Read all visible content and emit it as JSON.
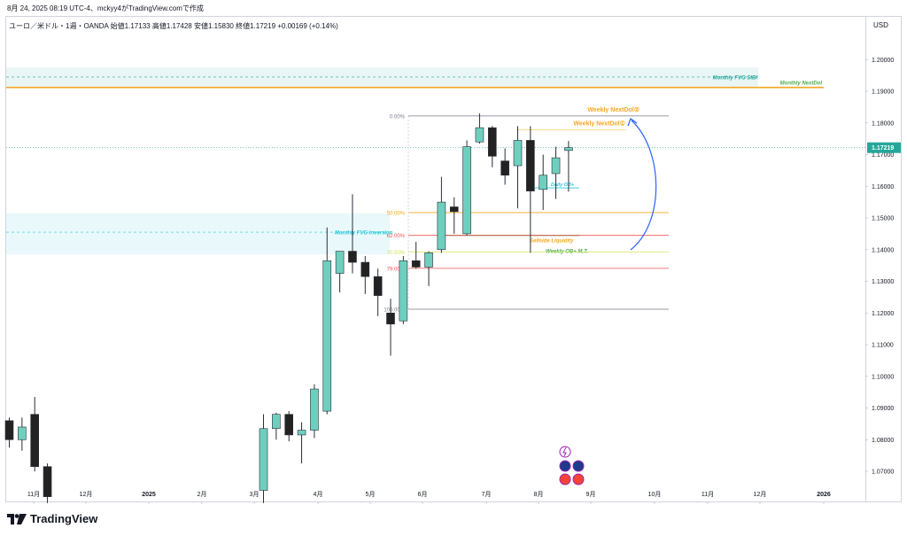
{
  "header": {
    "snapshot": "8月 24, 2025 08:19 UTC-4、mckyy4がTradingView.comで作成",
    "symbol_line": "ユーロ／米ドル・1週・OANDA  始値1.17133  高値1.17428  安値1.15830  終値1.17219  +0.00169 (+0.14%)"
  },
  "currency": "USD",
  "brand": {
    "name": "TradingView"
  },
  "chart_data": {
    "type": "candlestick",
    "y_ticks": [
      1.07,
      1.08,
      1.09,
      1.1,
      1.11,
      1.12,
      1.13,
      1.14,
      1.15,
      1.16,
      1.17,
      1.18,
      1.19,
      1.2
    ],
    "ylim": [
      1.0605,
      1.2135
    ],
    "x_labels": [
      "11月",
      "12月",
      "2025",
      "2月",
      "3月",
      "4月",
      "5月",
      "6月",
      "7月",
      "8月",
      "9月",
      "10月",
      "11月",
      "12月",
      "2026"
    ],
    "last_price": {
      "label": "1.17219",
      "value": 1.17219,
      "color": "#26a69a"
    },
    "colors": {
      "up": "#6fcfbf",
      "down": "#222222",
      "wick": "#2a2e39"
    },
    "candles": [
      {
        "x": 0,
        "o": 1.086,
        "h": 1.087,
        "l": 1.0775,
        "c": 1.08
      },
      {
        "x": 1,
        "o": 1.08,
        "h": 1.087,
        "l": 1.0765,
        "c": 1.084
      },
      {
        "x": 2,
        "o": 1.088,
        "h": 1.0935,
        "l": 1.07,
        "c": 1.0715
      },
      {
        "x": 3,
        "o": 1.0715,
        "h": 1.0725,
        "l": 1.06,
        "c": 1.062
      },
      {
        "x": 20,
        "o": 1.064,
        "h": 1.088,
        "l": 1.06,
        "c": 1.0835
      },
      {
        "x": 21,
        "o": 1.0835,
        "h": 1.0885,
        "l": 1.08,
        "c": 1.088
      },
      {
        "x": 22,
        "o": 1.088,
        "h": 1.089,
        "l": 1.0795,
        "c": 1.0815
      },
      {
        "x": 23,
        "o": 1.0815,
        "h": 1.0855,
        "l": 1.0725,
        "c": 1.083
      },
      {
        "x": 24,
        "o": 1.083,
        "h": 1.0975,
        "l": 1.0805,
        "c": 1.096
      },
      {
        "x": 25,
        "o": 1.089,
        "h": 1.147,
        "l": 1.088,
        "c": 1.1365
      },
      {
        "x": 26,
        "o": 1.1325,
        "h": 1.1395,
        "l": 1.1265,
        "c": 1.1395
      },
      {
        "x": 27,
        "o": 1.1395,
        "h": 1.1575,
        "l": 1.1325,
        "c": 1.136
      },
      {
        "x": 28,
        "o": 1.136,
        "h": 1.138,
        "l": 1.126,
        "c": 1.1315
      },
      {
        "x": 29,
        "o": 1.1315,
        "h": 1.134,
        "l": 1.119,
        "c": 1.1255
      },
      {
        "x": 30,
        "o": 1.12,
        "h": 1.1245,
        "l": 1.1065,
        "c": 1.1165
      },
      {
        "x": 31,
        "o": 1.1175,
        "h": 1.138,
        "l": 1.1165,
        "c": 1.1365
      },
      {
        "x": 32,
        "o": 1.1365,
        "h": 1.1425,
        "l": 1.134,
        "c": 1.1345
      },
      {
        "x": 33,
        "o": 1.1345,
        "h": 1.1395,
        "l": 1.1285,
        "c": 1.139
      },
      {
        "x": 34,
        "o": 1.14,
        "h": 1.163,
        "l": 1.139,
        "c": 1.155
      },
      {
        "x": 35,
        "o": 1.1535,
        "h": 1.1565,
        "l": 1.145,
        "c": 1.152
      },
      {
        "x": 36,
        "o": 1.145,
        "h": 1.1745,
        "l": 1.1445,
        "c": 1.1725
      },
      {
        "x": 37,
        "o": 1.174,
        "h": 1.183,
        "l": 1.1735,
        "c": 1.1785
      },
      {
        "x": 38,
        "o": 1.1785,
        "h": 1.179,
        "l": 1.166,
        "c": 1.1695
      },
      {
        "x": 39,
        "o": 1.168,
        "h": 1.172,
        "l": 1.1605,
        "c": 1.1635
      },
      {
        "x": 40,
        "o": 1.1665,
        "h": 1.179,
        "l": 1.153,
        "c": 1.1745
      },
      {
        "x": 41,
        "o": 1.1745,
        "h": 1.179,
        "l": 1.139,
        "c": 1.1585
      },
      {
        "x": 42,
        "o": 1.159,
        "h": 1.17,
        "l": 1.1525,
        "c": 1.1635
      },
      {
        "x": 43,
        "o": 1.164,
        "h": 1.1725,
        "l": 1.156,
        "c": 1.169
      },
      {
        "x": 44,
        "o": 1.1713,
        "h": 1.1743,
        "l": 1.1583,
        "c": 1.1722
      }
    ],
    "zones": [
      {
        "name": "monthly-fvg-sibi",
        "label": "Monthly FVG SIBI",
        "from": 1.1915,
        "to": 1.1975,
        "color": "#26a69a"
      },
      {
        "name": "monthly-fvg-inversion",
        "label": "Monthly FVG Inversion",
        "from": 1.1385,
        "to": 1.1515,
        "color": "#26c6da"
      }
    ],
    "lines": [
      {
        "name": "monthly-nextdol",
        "label": "Monthly NextDol",
        "value": 1.1912,
        "color": "#f5a623"
      },
      {
        "name": "weekly-nextdol-2",
        "label": "Weekly NextDol②",
        "value": 1.1822,
        "color": "#f5a623"
      },
      {
        "name": "weekly-nextdol-1",
        "label": "Weekly NextDol①",
        "value": 1.179,
        "color": "#f5d55a"
      },
      {
        "name": "sellside-liquidity",
        "label": "Sellside Liquidity",
        "value": 1.1445,
        "color": "#f5a623"
      },
      {
        "name": "weekly-ob-mt",
        "label": "Weekly OB+ M.T.",
        "value": 1.1395,
        "color": "#4caf50"
      },
      {
        "name": "daily-ob",
        "label": "Daily OB+",
        "value": 1.1595,
        "color": "#26c6da"
      }
    ],
    "fib_levels": [
      {
        "label": "0.00%",
        "value": 1.1822,
        "color": "#787b86"
      },
      {
        "label": "50.00%",
        "value": 1.1517,
        "color": "#f5a623"
      },
      {
        "label": "62.00%",
        "value": 1.1445,
        "color": "#ef5350"
      },
      {
        "label": "70.50%",
        "value": 1.1393,
        "color": "#d4e157"
      },
      {
        "label": "79.00%",
        "value": 1.1341,
        "color": "#ef5350"
      },
      {
        "label": "100.00%",
        "value": 1.1212,
        "color": "#787b86"
      }
    ]
  }
}
